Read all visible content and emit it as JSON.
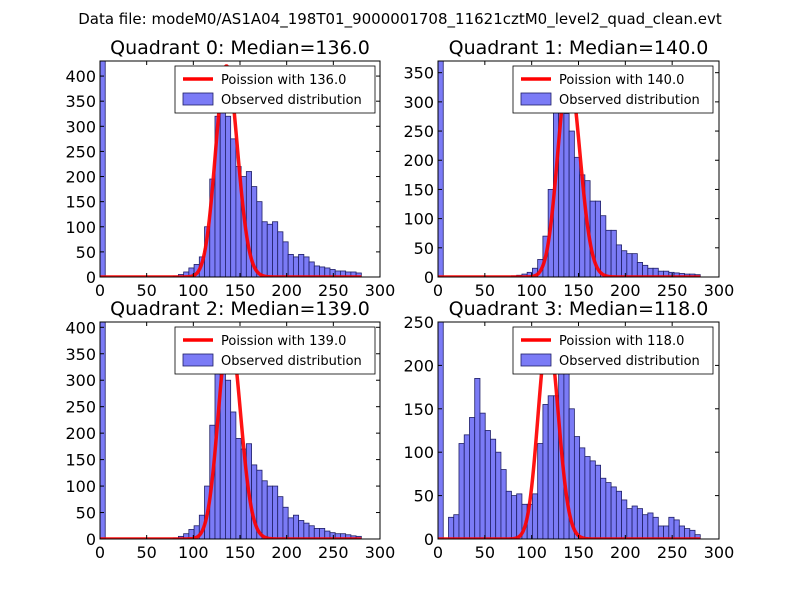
{
  "suptitle": "Data file: modeM0/AS1A04_198T01_9000001708_11621cztM0_level2_quad_clean.evt",
  "chart_data": [
    {
      "type": "bar",
      "title": "Quadrant 0: Median=136.0",
      "xlim": [
        0,
        300
      ],
      "ylim": [
        0,
        430
      ],
      "xticks": [
        0,
        50,
        100,
        150,
        200,
        250,
        300
      ],
      "yticks": [
        0,
        50,
        100,
        150,
        200,
        250,
        300,
        350,
        400
      ],
      "legend": [
        "Poission with 136.0",
        "Observed distribution"
      ],
      "legend_position": "top-right",
      "median": 136,
      "poisson_peak": 420,
      "hist_start": 0,
      "bin_width": 5.6,
      "hist_values": [
        430,
        0,
        0,
        0,
        0,
        0,
        0,
        0,
        0,
        0,
        0,
        0,
        0,
        0,
        2,
        5,
        10,
        18,
        25,
        40,
        100,
        195,
        320,
        345,
        320,
        275,
        220,
        200,
        210,
        180,
        150,
        110,
        105,
        110,
        90,
        70,
        45,
        40,
        45,
        40,
        30,
        22,
        20,
        18,
        15,
        12,
        12,
        10,
        10,
        8
      ]
    },
    {
      "type": "bar",
      "title": "Quadrant 1: Median=140.0",
      "xlim": [
        0,
        300
      ],
      "ylim": [
        0,
        370
      ],
      "xticks": [
        0,
        50,
        100,
        150,
        200,
        250,
        300
      ],
      "yticks": [
        0,
        50,
        100,
        150,
        200,
        250,
        300,
        350
      ],
      "legend": [
        "Poission with 140.0",
        "Observed distribution"
      ],
      "legend_position": "top-right",
      "median": 140,
      "poisson_peak": 350,
      "hist_start": 0,
      "bin_width": 5.6,
      "hist_values": [
        370,
        0,
        0,
        0,
        0,
        0,
        0,
        0,
        0,
        0,
        0,
        0,
        0,
        0,
        2,
        3,
        5,
        8,
        15,
        30,
        70,
        150,
        285,
        345,
        280,
        250,
        205,
        175,
        165,
        130,
        130,
        105,
        80,
        80,
        55,
        45,
        40,
        40,
        25,
        20,
        15,
        15,
        10,
        10,
        8,
        7,
        6,
        5,
        5,
        4
      ]
    },
    {
      "type": "bar",
      "title": "Quadrant 2: Median=139.0",
      "xlim": [
        0,
        300
      ],
      "ylim": [
        0,
        410
      ],
      "xticks": [
        0,
        50,
        100,
        150,
        200,
        250,
        300
      ],
      "yticks": [
        0,
        50,
        100,
        150,
        200,
        250,
        300,
        350,
        400
      ],
      "legend": [
        "Poission with 139.0",
        "Observed distribution"
      ],
      "legend_position": "top-right",
      "median": 139,
      "poisson_peak": 395,
      "hist_start": 0,
      "bin_width": 5.6,
      "hist_values": [
        410,
        0,
        0,
        0,
        0,
        0,
        0,
        0,
        0,
        0,
        0,
        0,
        0,
        0,
        2,
        5,
        10,
        18,
        25,
        45,
        100,
        215,
        320,
        380,
        300,
        240,
        190,
        170,
        180,
        140,
        130,
        110,
        100,
        100,
        80,
        60,
        40,
        45,
        35,
        30,
        25,
        20,
        20,
        15,
        12,
        10,
        10,
        8,
        6,
        5
      ]
    },
    {
      "type": "bar",
      "title": "Quadrant 3: Median=118.0",
      "xlim": [
        0,
        300
      ],
      "ylim": [
        0,
        250
      ],
      "xticks": [
        0,
        50,
        100,
        150,
        200,
        250,
        300
      ],
      "yticks": [
        0,
        50,
        100,
        150,
        200,
        250
      ],
      "legend": [
        "Poission with 118.0",
        "Observed distribution"
      ],
      "legend_position": "top-right",
      "median": 118,
      "poisson_peak": 235,
      "hist_start": 0,
      "bin_width": 5.6,
      "hist_values": [
        250,
        0,
        25,
        28,
        110,
        120,
        140,
        185,
        145,
        125,
        115,
        100,
        80,
        55,
        50,
        52,
        40,
        40,
        52,
        110,
        155,
        165,
        165,
        225,
        210,
        150,
        118,
        105,
        95,
        90,
        85,
        70,
        65,
        60,
        55,
        45,
        35,
        38,
        35,
        28,
        30,
        25,
        15,
        15,
        25,
        22,
        15,
        12,
        10,
        5
      ]
    }
  ]
}
